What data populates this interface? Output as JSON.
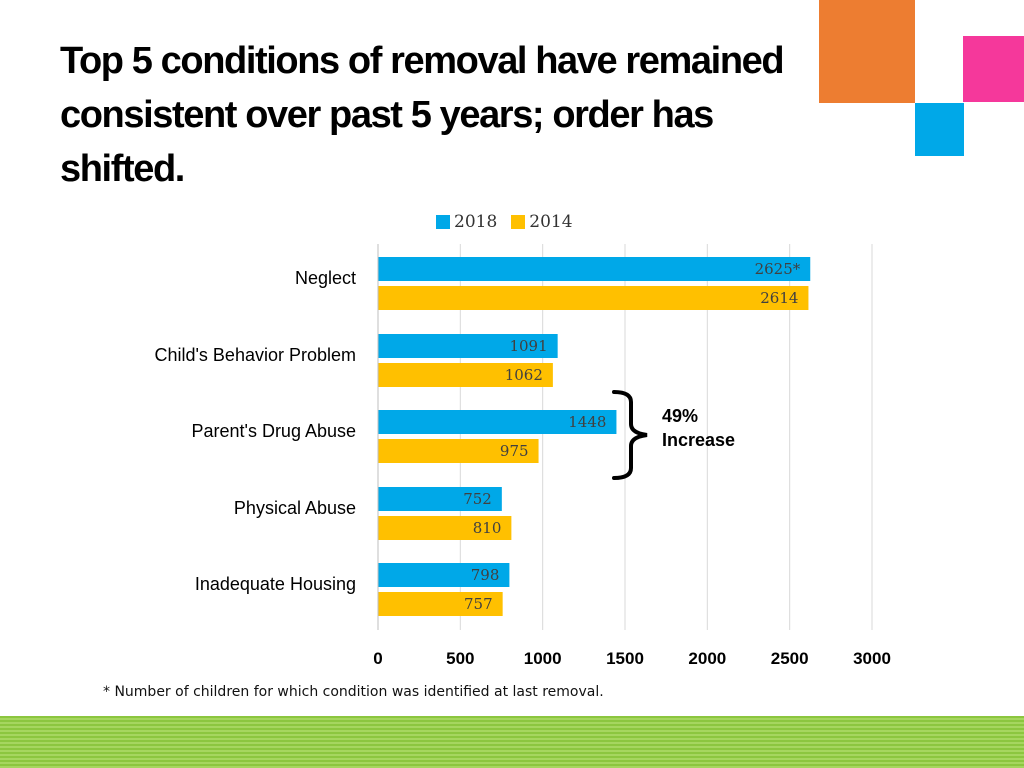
{
  "title": "Top 5 conditions of removal have remained consistent over past 5 years; order has shifted.",
  "colors": {
    "series_2018": "#00a8e8",
    "series_2014": "#ffc000",
    "deco_orange": "#ed7d31",
    "deco_pink": "#f5389b",
    "deco_cyan": "#00a8e8",
    "footer_green": "#8cc63f",
    "grid": "#d9d9d9"
  },
  "chart_data": {
    "type": "bar",
    "orientation": "horizontal",
    "categories": [
      "Neglect",
      "Child's Behavior Problem",
      "Parent's Drug Abuse",
      "Physical Abuse",
      "Inadequate Housing"
    ],
    "series": [
      {
        "name": "2018",
        "values": [
          2625,
          1091,
          1448,
          752,
          798
        ],
        "labels": [
          "2625*",
          "1091",
          "1448",
          "752",
          "798"
        ]
      },
      {
        "name": "2014",
        "values": [
          2614,
          1062,
          975,
          810,
          757
        ],
        "labels": [
          "2614",
          "1062",
          "975",
          "810",
          "757"
        ]
      }
    ],
    "xlim": [
      0,
      3000
    ],
    "xticks": [
      0,
      500,
      1000,
      1500,
      2000,
      2500,
      3000
    ],
    "xtick_labels": [
      "0",
      "500",
      "1000",
      "1500",
      "2000",
      "2500",
      "3000"
    ],
    "grid": true,
    "legend_position": "top-center",
    "annotation": {
      "category": "Parent's Drug Abuse",
      "line1": "49%",
      "line2": "Increase"
    }
  },
  "footnote": "* Number of children for which condition was identified at last removal."
}
